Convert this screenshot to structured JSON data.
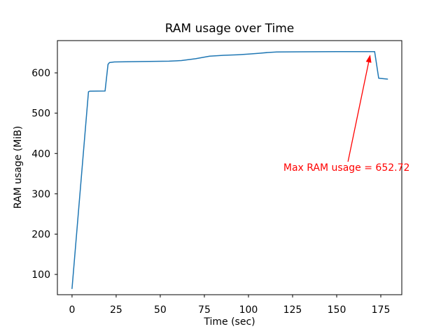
{
  "figure": {
    "background": "#ffffff",
    "text_color": "#000000",
    "axis_color": "#000000"
  },
  "chart_data": {
    "type": "line",
    "title": "RAM usage over Time",
    "xlabel": "Time (sec)",
    "ylabel": "RAM usage (MiB)",
    "xlim": [
      -8.3,
      186.9
    ],
    "ylim": [
      49.7,
      680.0
    ],
    "x_ticks": [
      0,
      25,
      50,
      75,
      100,
      125,
      150,
      175
    ],
    "y_ticks": [
      100,
      200,
      300,
      400,
      500,
      600
    ],
    "grid": false,
    "legend": null,
    "max_value": 652.72,
    "series": [
      {
        "name": "RAM usage",
        "color": "#1f77b4",
        "line_width": 1.5,
        "points": [
          [
            0,
            65
          ],
          [
            9.3,
            553
          ],
          [
            10,
            554.5
          ],
          [
            18.7,
            555
          ],
          [
            20.4,
            621
          ],
          [
            21.2,
            625.5
          ],
          [
            24,
            627
          ],
          [
            40,
            628
          ],
          [
            55,
            629
          ],
          [
            62,
            630.5
          ],
          [
            70,
            635
          ],
          [
            78,
            641.5
          ],
          [
            86,
            643.5
          ],
          [
            94,
            645
          ],
          [
            100,
            646.5
          ],
          [
            106,
            648.5
          ],
          [
            111,
            650.5
          ],
          [
            116,
            651.8
          ],
          [
            130,
            652.2
          ],
          [
            150,
            652.5
          ],
          [
            171.5,
            652.72
          ],
          [
            173.8,
            586.5
          ],
          [
            178.8,
            584.5
          ]
        ]
      }
    ],
    "annotation": {
      "text": "Max RAM usage = 652.72",
      "color": "#ff0000",
      "text_xy": [
        119.8,
        364
      ],
      "arrow_tail_xy": [
        156.4,
        379.7
      ],
      "arrow_tip_xy": [
        169.0,
        645
      ]
    }
  }
}
